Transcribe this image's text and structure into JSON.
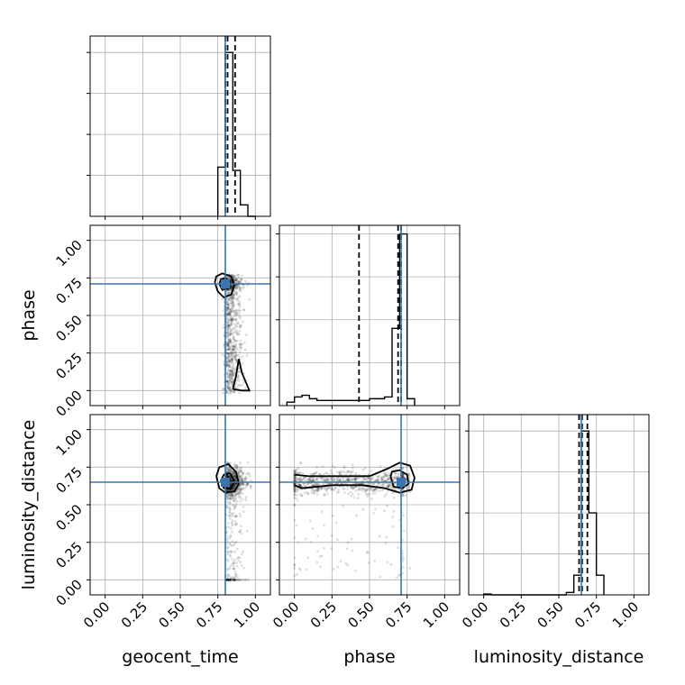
{
  "chart_data": {
    "type": "corner",
    "parameters": [
      "geocent_time",
      "phase",
      "luminosity_distance"
    ],
    "axis_labels": {
      "geocent_time": "geocent_time",
      "phase": "phase",
      "luminosity_distance": "luminosity_distance"
    },
    "range": [
      -0.1,
      1.1
    ],
    "ticks": [
      0.0,
      0.25,
      0.5,
      0.75,
      1.0
    ],
    "tick_labels": [
      "0.00",
      "0.25",
      "0.50",
      "0.75",
      "1.00"
    ],
    "grid": true,
    "truths": {
      "geocent_time": 0.8,
      "phase": 0.71,
      "luminosity_distance": 0.65
    },
    "histograms": [
      {
        "parameter": "geocent_time",
        "bin_edges": [
          0.75,
          0.8,
          0.85,
          0.9,
          0.95,
          1.0
        ],
        "counts": [
          0.3,
          1.0,
          0.28,
          0.07,
          0.0
        ],
        "ymax": 1.1,
        "quantiles": [
          0.8,
          0.815,
          0.865
        ]
      },
      {
        "parameter": "phase",
        "bin_edges": [
          -0.05,
          0.0,
          0.05,
          0.1,
          0.15,
          0.2,
          0.25,
          0.3,
          0.35,
          0.4,
          0.45,
          0.5,
          0.55,
          0.6,
          0.65,
          0.7,
          0.75,
          0.8
        ],
        "counts": [
          0.02,
          0.05,
          0.06,
          0.04,
          0.03,
          0.03,
          0.03,
          0.03,
          0.03,
          0.03,
          0.03,
          0.04,
          0.04,
          0.05,
          0.45,
          1.0,
          0.04
        ],
        "ymax": 1.05,
        "quantiles": [
          0.43,
          0.69,
          0.71
        ]
      },
      {
        "parameter": "luminosity_distance",
        "bin_edges": [
          0.0,
          0.05,
          0.55,
          0.6,
          0.65,
          0.7,
          0.75,
          0.8
        ],
        "counts": [
          0.005,
          0.0,
          0.015,
          0.12,
          1.0,
          0.5,
          0.12
        ],
        "ymax": 1.1,
        "quantiles": [
          0.635,
          0.655,
          0.69
        ]
      }
    ],
    "scatter_panels": [
      {
        "x": "geocent_time",
        "y": "phase",
        "sample_region": {
          "x": [
            0.77,
            0.96
          ],
          "y": [
            -0.02,
            0.77
          ]
        },
        "contours": [
          [
            [
              0.73,
              0.72
            ],
            [
              0.75,
              0.66
            ],
            [
              0.79,
              0.62
            ],
            [
              0.84,
              0.64
            ],
            [
              0.86,
              0.7
            ],
            [
              0.84,
              0.76
            ],
            [
              0.78,
              0.78
            ],
            [
              0.74,
              0.76
            ],
            [
              0.73,
              0.72
            ]
          ],
          [
            [
              0.76,
              0.71
            ],
            [
              0.78,
              0.67
            ],
            [
              0.82,
              0.68
            ],
            [
              0.83,
              0.72
            ],
            [
              0.8,
              0.75
            ],
            [
              0.77,
              0.74
            ],
            [
              0.76,
              0.71
            ]
          ],
          [
            [
              0.85,
              0.01
            ],
            [
              0.87,
              0.09
            ],
            [
              0.89,
              0.21
            ],
            [
              0.91,
              0.12
            ],
            [
              0.96,
              0.0
            ],
            [
              0.91,
              0.0
            ],
            [
              0.85,
              0.01
            ]
          ]
        ]
      },
      {
        "x": "geocent_time",
        "y": "luminosity_distance",
        "sample_region": {
          "x": [
            0.77,
            0.97
          ],
          "y": [
            0.0,
            0.78
          ]
        },
        "contours": [
          [
            [
              0.74,
              0.69
            ],
            [
              0.76,
              0.61
            ],
            [
              0.8,
              0.58
            ],
            [
              0.86,
              0.59
            ],
            [
              0.89,
              0.64
            ],
            [
              0.87,
              0.72
            ],
            [
              0.82,
              0.77
            ],
            [
              0.76,
              0.75
            ],
            [
              0.74,
              0.69
            ]
          ],
          [
            [
              0.77,
              0.66
            ],
            [
              0.79,
              0.61
            ],
            [
              0.84,
              0.61
            ],
            [
              0.86,
              0.66
            ],
            [
              0.83,
              0.71
            ],
            [
              0.79,
              0.7
            ],
            [
              0.77,
              0.66
            ]
          ]
        ]
      },
      {
        "x": "phase",
        "y": "luminosity_distance",
        "sample_region": {
          "x": [
            0.0,
            0.77
          ],
          "y": [
            0.0,
            0.78
          ]
        },
        "contours": [
          [
            [
              0.0,
              0.7
            ],
            [
              0.1,
              0.69
            ],
            [
              0.3,
              0.69
            ],
            [
              0.5,
              0.69
            ],
            [
              0.62,
              0.74
            ],
            [
              0.7,
              0.78
            ],
            [
              0.77,
              0.76
            ],
            [
              0.8,
              0.68
            ],
            [
              0.78,
              0.6
            ],
            [
              0.7,
              0.58
            ],
            [
              0.6,
              0.61
            ],
            [
              0.45,
              0.63
            ],
            [
              0.25,
              0.63
            ],
            [
              0.05,
              0.61
            ],
            [
              0.0,
              0.63
            ]
          ],
          [
            [
              0.64,
              0.69
            ],
            [
              0.66,
              0.62
            ],
            [
              0.72,
              0.61
            ],
            [
              0.76,
              0.64
            ],
            [
              0.75,
              0.7
            ],
            [
              0.7,
              0.73
            ],
            [
              0.65,
              0.72
            ],
            [
              0.64,
              0.69
            ]
          ]
        ]
      }
    ]
  }
}
